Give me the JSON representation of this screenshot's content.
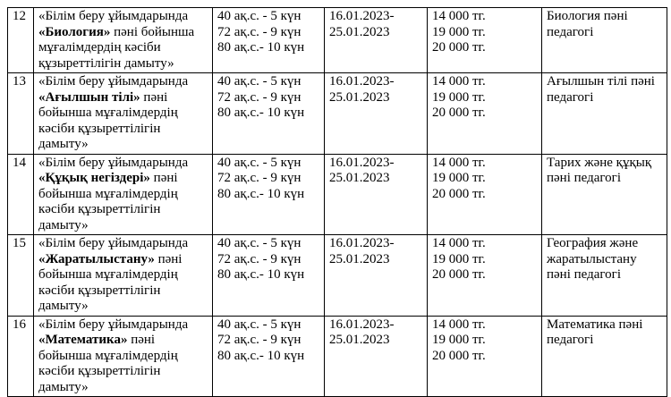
{
  "table": {
    "rows": [
      {
        "num": "12",
        "title_pre": "«Білім беру ұйымдарында ",
        "title_bold": "«Биология»",
        "title_post": " пәні бойынша мұғалімдердің кәсіби құзыреттілігін дамыту»",
        "hours": [
          "40 ақ.с. - 5 күн",
          "72 ақ.с. - 9 күн",
          "80 ақ.с.- 10 күн"
        ],
        "dates": [
          "16.01.2023-",
          "25.01.2023"
        ],
        "prices": [
          "14 000 тг.",
          "19 000 тг.",
          "20 000 тг."
        ],
        "audience": "Биология пәні педагогі"
      },
      {
        "num": "13",
        "title_pre": "«Білім беру ұйымдарында ",
        "title_bold": "«Ағылшын тілі»",
        "title_post": " пәні бойынша мұғалімдердің кәсіби құзыреттілігін дамыту»",
        "hours": [
          "40 ақ.с. - 5 күн",
          "72 ақ.с. - 9 күн",
          "80 ақ.с.- 10 күн"
        ],
        "dates": [
          "16.01.2023-",
          "25.01.2023"
        ],
        "prices": [
          "14 000 тг.",
          "19 000 тг.",
          "20 000 тг."
        ],
        "audience": "Ағылшын тілі пәні педагогі"
      },
      {
        "num": "14",
        "title_pre": "«Білім беру ұйымдарында ",
        "title_bold": "«Құқық негіздері»",
        "title_post": " пәні бойынша мұғалімдердің кәсіби құзыреттілігін дамыту»",
        "hours": [
          "40 ақ.с. - 5 күн",
          "72 ақ.с. - 9 күн",
          "80 ақ.с.- 10 күн"
        ],
        "dates": [
          "16.01.2023-",
          "25.01.2023"
        ],
        "prices": [
          "14 000 тг.",
          "19 000 тг.",
          "20 000 тг."
        ],
        "audience": "Тарих және құқық пәні педагогі"
      },
      {
        "num": "15",
        "title_pre": "«Білім беру ұйымдарында ",
        "title_bold": "«Жаратылыстану»",
        "title_post": " пәні бойынша мұғалімдердің кәсіби құзыреттілігін дамыту»",
        "hours": [
          "40 ақ.с. - 5 күн",
          "72 ақ.с. - 9 күн",
          "80 ақ.с.- 10 күн"
        ],
        "dates": [
          "16.01.2023-",
          "25.01.2023"
        ],
        "prices": [
          "14 000 тг.",
          "19 000 тг.",
          "20 000 тг."
        ],
        "audience": "География және жаратылыстану пәні педагогі"
      },
      {
        "num": "16",
        "title_pre": "«Білім беру ұйымдарында ",
        "title_bold": "«Математика»",
        "title_post": " пәні бойынша мұғалімдердің кәсіби құзыреттілігін дамыту»",
        "hours": [
          "40 ақ.с. - 5 күн",
          "72 ақ.с. - 9 күн",
          "80 ақ.с.- 10 күн"
        ],
        "dates": [
          "16.01.2023-",
          "25.01.2023"
        ],
        "prices": [
          "14 000 тг.",
          "19 000 тг.",
          "20 000 тг."
        ],
        "audience": "Математика пәні педагогі"
      }
    ]
  }
}
